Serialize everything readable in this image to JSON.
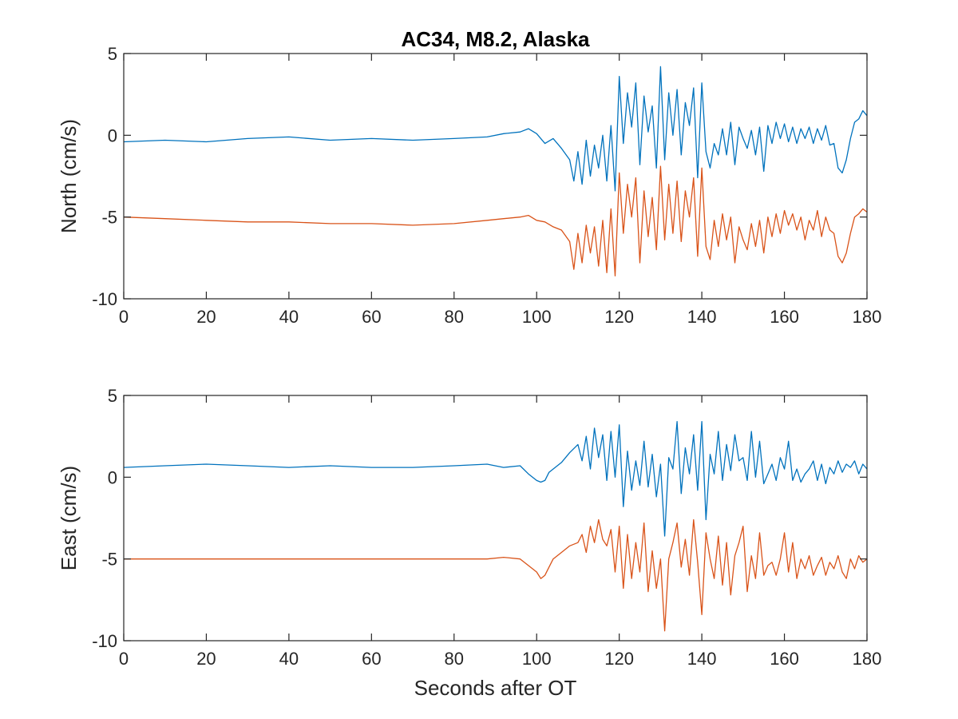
{
  "chart_data": [
    {
      "type": "line",
      "title": "AC34, M8.2, Alaska",
      "xlabel": "",
      "ylabel": "North (cm/s)",
      "xlim": [
        0,
        180
      ],
      "ylim": [
        -10,
        5
      ],
      "xticks": [
        0,
        20,
        40,
        60,
        80,
        100,
        120,
        140,
        160,
        180
      ],
      "yticks": [
        5,
        0,
        -5,
        -10
      ],
      "ytick_labels": [
        "5",
        "0",
        "-5",
        "-10"
      ],
      "grid": false,
      "series": [
        {
          "color": "#0072BD",
          "x": [
            0,
            10,
            20,
            30,
            40,
            50,
            60,
            70,
            80,
            88,
            92,
            96,
            98,
            100,
            102,
            104,
            106,
            108,
            109,
            110,
            111,
            112,
            113,
            114,
            115,
            116,
            117,
            118,
            119,
            120,
            121,
            122,
            123,
            124,
            125,
            126,
            127,
            128,
            129,
            130,
            131,
            132,
            133,
            134,
            135,
            136,
            137,
            138,
            139,
            140,
            141,
            142,
            143,
            144,
            145,
            146,
            147,
            148,
            149,
            150,
            151,
            152,
            153,
            154,
            155,
            156,
            157,
            158,
            159,
            160,
            161,
            162,
            163,
            164,
            165,
            166,
            167,
            168,
            169,
            170,
            171,
            172,
            173,
            174,
            175,
            176,
            177,
            178,
            179,
            180
          ],
          "y": [
            -0.4,
            -0.3,
            -0.4,
            -0.2,
            -0.1,
            -0.3,
            -0.2,
            -0.3,
            -0.2,
            -0.1,
            0.1,
            0.2,
            0.4,
            0.1,
            -0.5,
            -0.2,
            -0.8,
            -1.5,
            -2.8,
            -1.0,
            -3.0,
            -0.3,
            -2.5,
            -0.6,
            -2.0,
            0.0,
            -2.8,
            0.6,
            -3.4,
            3.6,
            -0.5,
            2.6,
            0.5,
            3.2,
            -1.8,
            2.4,
            0.2,
            1.8,
            -2.0,
            4.2,
            -1.5,
            2.6,
            0.0,
            2.8,
            -1.2,
            2.0,
            0.6,
            2.9,
            -2.6,
            3.2,
            -1.0,
            -2.0,
            -0.5,
            -1.2,
            0.4,
            -1.2,
            0.8,
            -1.8,
            0.5,
            -0.2,
            -0.8,
            0.3,
            -1.2,
            0.5,
            -2.2,
            0.6,
            -0.5,
            0.8,
            -0.2,
            0.7,
            -0.4,
            0.5,
            -0.5,
            0.4,
            -0.2,
            0.5,
            -0.5,
            0.4,
            -0.3,
            0.6,
            -0.6,
            -0.5,
            -2.0,
            -2.3,
            -1.5,
            -0.2,
            0.8,
            1.0,
            1.5,
            1.2
          ]
        },
        {
          "color": "#D95319",
          "x": [
            0,
            10,
            20,
            30,
            40,
            50,
            60,
            70,
            80,
            88,
            92,
            96,
            98,
            100,
            102,
            104,
            106,
            108,
            109,
            110,
            111,
            112,
            113,
            114,
            115,
            116,
            117,
            118,
            119,
            120,
            121,
            122,
            123,
            124,
            125,
            126,
            127,
            128,
            129,
            130,
            131,
            132,
            133,
            134,
            135,
            136,
            137,
            138,
            139,
            140,
            141,
            142,
            143,
            144,
            145,
            146,
            147,
            148,
            149,
            150,
            151,
            152,
            153,
            154,
            155,
            156,
            157,
            158,
            159,
            160,
            161,
            162,
            163,
            164,
            165,
            166,
            167,
            168,
            169,
            170,
            171,
            172,
            173,
            174,
            175,
            176,
            177,
            178,
            179,
            180
          ],
          "y": [
            -5.0,
            -5.1,
            -5.2,
            -5.3,
            -5.3,
            -5.4,
            -5.4,
            -5.5,
            -5.4,
            -5.2,
            -5.1,
            -5.0,
            -4.9,
            -5.2,
            -5.3,
            -5.6,
            -5.8,
            -6.5,
            -8.2,
            -6.0,
            -7.8,
            -5.5,
            -7.2,
            -5.6,
            -8.0,
            -5.2,
            -8.4,
            -4.5,
            -8.6,
            -2.3,
            -6.0,
            -3.0,
            -5.0,
            -2.6,
            -7.8,
            -3.4,
            -6.2,
            -3.8,
            -7.0,
            -1.9,
            -6.4,
            -3.0,
            -6.0,
            -2.8,
            -6.5,
            -3.4,
            -5.0,
            -2.6,
            -7.4,
            -2.0,
            -6.8,
            -7.6,
            -5.2,
            -6.8,
            -4.8,
            -6.4,
            -5.0,
            -7.8,
            -5.6,
            -6.4,
            -7.0,
            -5.4,
            -6.8,
            -5.2,
            -7.2,
            -5.0,
            -6.2,
            -4.8,
            -6.0,
            -4.6,
            -5.5,
            -4.8,
            -5.8,
            -5.0,
            -6.4,
            -5.2,
            -5.8,
            -4.6,
            -6.2,
            -5.0,
            -5.8,
            -6.0,
            -7.4,
            -7.8,
            -7.2,
            -6.0,
            -5.0,
            -4.8,
            -4.5,
            -4.7
          ]
        }
      ]
    },
    {
      "type": "line",
      "title": "",
      "xlabel": "Seconds after OT",
      "ylabel": "East (cm/s)",
      "xlim": [
        0,
        180
      ],
      "ylim": [
        -10,
        5
      ],
      "xticks": [
        0,
        20,
        40,
        60,
        80,
        100,
        120,
        140,
        160,
        180
      ],
      "yticks": [
        5,
        0,
        -5,
        -10
      ],
      "ytick_labels": [
        "5",
        "0",
        "-5",
        "-10"
      ],
      "grid": false,
      "series": [
        {
          "color": "#0072BD",
          "x": [
            0,
            10,
            20,
            30,
            40,
            50,
            60,
            70,
            80,
            88,
            92,
            96,
            98,
            100,
            101,
            102,
            103,
            104,
            106,
            108,
            110,
            111,
            112,
            113,
            114,
            115,
            116,
            117,
            118,
            119,
            120,
            121,
            122,
            123,
            124,
            125,
            126,
            127,
            128,
            129,
            130,
            131,
            132,
            133,
            134,
            135,
            136,
            137,
            138,
            139,
            140,
            141,
            142,
            143,
            144,
            145,
            146,
            147,
            148,
            149,
            150,
            151,
            152,
            153,
            154,
            155,
            156,
            157,
            158,
            159,
            160,
            161,
            162,
            163,
            164,
            165,
            166,
            167,
            168,
            169,
            170,
            171,
            172,
            173,
            174,
            175,
            176,
            177,
            178,
            179,
            180
          ],
          "y": [
            0.6,
            0.7,
            0.8,
            0.7,
            0.6,
            0.7,
            0.6,
            0.6,
            0.7,
            0.8,
            0.6,
            0.7,
            0.2,
            -0.2,
            -0.3,
            -0.2,
            0.3,
            0.5,
            0.9,
            1.5,
            2.0,
            1.0,
            2.5,
            0.5,
            3.0,
            1.2,
            2.6,
            -0.2,
            2.8,
            0.0,
            3.2,
            -1.8,
            1.6,
            -0.8,
            1.0,
            -0.5,
            2.2,
            -0.6,
            1.4,
            -1.2,
            0.8,
            -3.6,
            1.2,
            0.5,
            3.4,
            -1.0,
            1.8,
            0.2,
            2.6,
            -0.8,
            3.4,
            -2.6,
            1.4,
            0.2,
            2.8,
            -0.2,
            2.0,
            0.4,
            2.6,
            1.0,
            1.2,
            -0.2,
            2.8,
            0.0,
            2.2,
            -0.4,
            0.2,
            0.8,
            -0.2,
            1.2,
            0.5,
            2.2,
            -0.2,
            0.5,
            -0.3,
            0.2,
            0.5,
            1.0,
            -0.2,
            0.8,
            -0.4,
            0.6,
            0.2,
            1.0,
            0.3,
            0.8,
            0.6,
            1.0,
            0.2,
            0.8,
            0.5
          ]
        },
        {
          "color": "#D95319",
          "x": [
            0,
            10,
            20,
            30,
            40,
            50,
            60,
            70,
            80,
            88,
            92,
            96,
            98,
            100,
            101,
            102,
            103,
            104,
            106,
            108,
            110,
            111,
            112,
            113,
            114,
            115,
            116,
            117,
            118,
            119,
            120,
            121,
            122,
            123,
            124,
            125,
            126,
            127,
            128,
            129,
            130,
            131,
            132,
            133,
            134,
            135,
            136,
            137,
            138,
            139,
            140,
            141,
            142,
            143,
            144,
            145,
            146,
            147,
            148,
            149,
            150,
            151,
            152,
            153,
            154,
            155,
            156,
            157,
            158,
            159,
            160,
            161,
            162,
            163,
            164,
            165,
            166,
            167,
            168,
            169,
            170,
            171,
            172,
            173,
            174,
            175,
            176,
            177,
            178,
            179,
            180
          ],
          "y": [
            -5.0,
            -5.0,
            -5.0,
            -5.0,
            -5.0,
            -5.0,
            -5.0,
            -5.0,
            -5.0,
            -5.0,
            -4.9,
            -5.0,
            -5.4,
            -5.8,
            -6.2,
            -6.0,
            -5.5,
            -5.0,
            -4.6,
            -4.2,
            -4.0,
            -3.5,
            -4.6,
            -3.0,
            -4.0,
            -2.6,
            -3.8,
            -4.2,
            -3.2,
            -5.8,
            -3.0,
            -6.8,
            -3.5,
            -6.2,
            -4.0,
            -5.8,
            -2.8,
            -7.0,
            -4.5,
            -6.8,
            -5.0,
            -9.4,
            -5.0,
            -4.0,
            -2.8,
            -5.5,
            -3.8,
            -6.0,
            -2.6,
            -5.2,
            -8.4,
            -3.4,
            -5.0,
            -6.2,
            -3.6,
            -6.6,
            -4.0,
            -7.2,
            -4.8,
            -4.0,
            -3.0,
            -7.0,
            -4.8,
            -6.2,
            -3.4,
            -6.0,
            -5.4,
            -5.2,
            -6.0,
            -5.0,
            -3.4,
            -5.8,
            -4.0,
            -6.2,
            -5.0,
            -5.6,
            -4.8,
            -6.0,
            -5.4,
            -4.9,
            -6.0,
            -5.2,
            -5.6,
            -4.8,
            -5.8,
            -6.2,
            -5.0,
            -5.6,
            -4.8,
            -5.2,
            -5.0
          ]
        }
      ]
    }
  ]
}
